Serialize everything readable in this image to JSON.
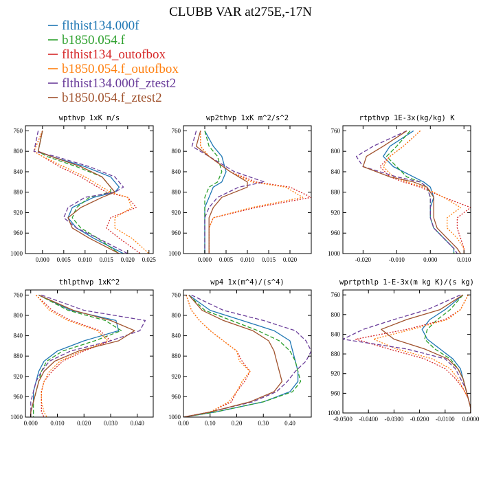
{
  "title": "CLUBB VAR at275E,-17N",
  "legend": [
    {
      "name": "flthist134.000f",
      "color": "#1f77b4",
      "style": "solid"
    },
    {
      "name": "b1850.054.f",
      "color": "#2ca02c",
      "style": "dashed"
    },
    {
      "name": "flthist134_outofbox",
      "color": "#d62728",
      "style": "dotted"
    },
    {
      "name": "b1850.054.f_outofbox",
      "color": "#ff7f0e",
      "style": "dotted"
    },
    {
      "name": "flthist134.000f_ztest2",
      "color": "#6a3d9a",
      "style": "dashed"
    },
    {
      "name": "b1850.054.f_ztest2",
      "color": "#a0522d",
      "style": "solid"
    }
  ],
  "chart_data": [
    {
      "type": "line",
      "title": "wpthvp  1xK m/s",
      "xlim": [
        -0.004,
        0.026
      ],
      "ylim": [
        1000,
        750
      ],
      "xticks": [
        0,
        0.005,
        0.01,
        0.015,
        0.02,
        0.025
      ],
      "xticklabels": [
        "0.000",
        "0.005",
        "0.010",
        "0.015",
        "0.020",
        "0.025"
      ],
      "yticks": [
        760,
        800,
        840,
        880,
        920,
        960,
        1000
      ],
      "y": [
        760,
        800,
        810,
        830,
        850,
        870,
        880,
        890,
        910,
        930,
        950,
        970,
        1000
      ],
      "series": [
        {
          "name": "flthist134.000f",
          "values": [
            0.0,
            -0.001,
            0.002,
            0.01,
            0.016,
            0.018,
            0.017,
            0.012,
            0.007,
            0.006,
            0.008,
            0.012,
            0.019
          ]
        },
        {
          "name": "b1850.054.f",
          "values": [
            0.0,
            -0.001,
            0.001,
            0.008,
            0.014,
            0.016,
            0.016,
            0.011,
            0.008,
            0.007,
            0.009,
            0.013,
            0.018
          ]
        },
        {
          "name": "flthist134_outofbox",
          "values": [
            0.0,
            -0.002,
            0.0,
            0.004,
            0.009,
            0.013,
            0.015,
            0.02,
            0.022,
            0.016,
            0.015,
            0.018,
            0.023
          ]
        },
        {
          "name": "b1850.054.f_outofbox",
          "values": [
            0.0,
            -0.002,
            0.0,
            0.005,
            0.01,
            0.014,
            0.016,
            0.02,
            0.021,
            0.017,
            0.017,
            0.021,
            0.025
          ]
        },
        {
          "name": "flthist134.000f_ztest2",
          "values": [
            -0.001,
            -0.002,
            0.003,
            0.011,
            0.017,
            0.019,
            0.017,
            0.01,
            0.006,
            0.005,
            0.008,
            0.013,
            0.02
          ]
        },
        {
          "name": "b1850.054.f_ztest2",
          "values": [
            0.0,
            -0.001,
            0.002,
            0.009,
            0.014,
            0.016,
            0.017,
            0.014,
            0.009,
            0.006,
            0.007,
            0.011,
            0.018
          ]
        }
      ]
    },
    {
      "type": "line",
      "title": "wp2thvp  1xK m^2/s^2",
      "xlim": [
        -0.005,
        0.025
      ],
      "ylim": [
        1000,
        750
      ],
      "xticks": [
        0,
        0.005,
        0.01,
        0.015,
        0.02
      ],
      "xticklabels": [
        "0.000",
        "0.005",
        "0.010",
        "0.015",
        "0.020"
      ],
      "yticks": [
        760,
        800,
        840,
        880,
        920,
        960,
        1000
      ],
      "y": [
        760,
        790,
        810,
        840,
        860,
        870,
        890,
        910,
        930,
        950,
        970,
        1000
      ],
      "series": [
        {
          "name": "flthist134.000f",
          "values": [
            0.0,
            0.002,
            0.004,
            0.005,
            0.004,
            0.002,
            0.001,
            0.0,
            0.0,
            0.0,
            0.0,
            0.0
          ]
        },
        {
          "name": "b1850.054.f",
          "values": [
            0.0,
            0.001,
            0.003,
            0.004,
            0.003,
            0.001,
            0.0,
            0.0,
            0.0,
            0.0,
            0.0,
            0.0
          ]
        },
        {
          "name": "flthist134_outofbox",
          "values": [
            -0.001,
            -0.001,
            0.001,
            0.006,
            0.012,
            0.02,
            0.025,
            0.012,
            0.002,
            0.001,
            0.001,
            0.001
          ]
        },
        {
          "name": "b1850.054.f_outofbox",
          "values": [
            -0.001,
            -0.001,
            0.001,
            0.006,
            0.011,
            0.019,
            0.023,
            0.011,
            0.002,
            0.001,
            0.001,
            0.001
          ]
        },
        {
          "name": "flthist134.000f_ztest2",
          "values": [
            -0.002,
            -0.003,
            0.001,
            0.007,
            0.014,
            0.008,
            0.003,
            0.001,
            0.0,
            0.0,
            0.0,
            0.0
          ]
        },
        {
          "name": "b1850.054.f_ztest2",
          "values": [
            -0.001,
            -0.002,
            0.001,
            0.006,
            0.01,
            0.01,
            0.004,
            0.002,
            0.001,
            0.001,
            0.001,
            0.001
          ]
        }
      ]
    },
    {
      "type": "line",
      "title": "rtpthvp  1E-3x(kg/kg) K",
      "xlim": [
        -0.026,
        0.012
      ],
      "ylim": [
        1000,
        750
      ],
      "xticks": [
        -0.02,
        -0.01,
        0,
        0.01
      ],
      "xticklabels": [
        "-0.020",
        "-0.010",
        "0.000",
        "0.010"
      ],
      "yticks": [
        760,
        800,
        840,
        880,
        920,
        960,
        1000
      ],
      "y": [
        760,
        790,
        810,
        830,
        850,
        860,
        870,
        890,
        910,
        930,
        950,
        970,
        990,
        1000
      ],
      "series": [
        {
          "name": "flthist134.000f",
          "values": [
            -0.005,
            -0.012,
            -0.014,
            -0.011,
            -0.005,
            -0.002,
            0.0,
            0.001,
            0.0,
            0.0,
            0.001,
            0.004,
            0.007,
            0.007
          ]
        },
        {
          "name": "b1850.054.f",
          "values": [
            -0.006,
            -0.01,
            -0.013,
            -0.01,
            -0.007,
            -0.003,
            -0.001,
            0.0,
            0.0,
            0.0,
            0.001,
            0.004,
            0.007,
            0.007
          ]
        },
        {
          "name": "flthist134_outofbox",
          "values": [
            -0.003,
            -0.008,
            -0.012,
            -0.015,
            -0.012,
            -0.008,
            -0.003,
            0.004,
            0.012,
            0.008,
            0.008,
            0.009,
            0.01,
            0.01
          ]
        },
        {
          "name": "b1850.054.f_outofbox",
          "values": [
            -0.003,
            -0.008,
            -0.012,
            -0.014,
            -0.011,
            -0.007,
            -0.002,
            0.004,
            0.009,
            0.005,
            0.005,
            0.008,
            0.01,
            0.01
          ]
        },
        {
          "name": "flthist134.000f_ztest2",
          "values": [
            -0.007,
            -0.017,
            -0.022,
            -0.02,
            -0.01,
            -0.003,
            -0.001,
            0.0,
            0.0,
            0.0,
            0.001,
            0.004,
            0.007,
            0.008
          ]
        },
        {
          "name": "b1850.054.f_ztest2",
          "values": [
            -0.007,
            -0.014,
            -0.019,
            -0.02,
            -0.012,
            -0.005,
            -0.001,
            0.001,
            0.001,
            0.001,
            0.002,
            0.005,
            0.008,
            0.009
          ]
        }
      ]
    },
    {
      "type": "line",
      "title": "thlpthvp  1xK^2",
      "xlim": [
        -0.002,
        0.046
      ],
      "ylim": [
        1000,
        750
      ],
      "xticks": [
        0,
        0.01,
        0.02,
        0.03,
        0.04
      ],
      "xticklabels": [
        "0.000",
        "0.010",
        "0.020",
        "0.030",
        "0.040"
      ],
      "yticks": [
        760,
        800,
        840,
        880,
        920,
        960,
        1000
      ],
      "y": [
        760,
        790,
        810,
        830,
        850,
        870,
        890,
        910,
        930,
        950,
        970,
        990,
        1000
      ],
      "series": [
        {
          "name": "flthist134.000f",
          "values": [
            0.003,
            0.015,
            0.032,
            0.033,
            0.02,
            0.01,
            0.005,
            0.003,
            0.002,
            0.001,
            0.001,
            0.0,
            0.0
          ]
        },
        {
          "name": "b1850.054.f",
          "values": [
            0.003,
            0.014,
            0.028,
            0.034,
            0.024,
            0.012,
            0.006,
            0.004,
            0.003,
            0.002,
            0.001,
            0.001,
            0.001
          ]
        },
        {
          "name": "flthist134_outofbox",
          "values": [
            0.002,
            0.008,
            0.015,
            0.026,
            0.03,
            0.02,
            0.012,
            0.008,
            0.005,
            0.004,
            0.004,
            0.004,
            0.005
          ]
        },
        {
          "name": "b1850.054.f_outofbox",
          "values": [
            0.002,
            0.007,
            0.014,
            0.025,
            0.029,
            0.019,
            0.011,
            0.007,
            0.005,
            0.004,
            0.004,
            0.005,
            0.006
          ]
        },
        {
          "name": "flthist134.000f_ztest2",
          "values": [
            0.004,
            0.02,
            0.043,
            0.041,
            0.03,
            0.015,
            0.007,
            0.004,
            0.002,
            0.001,
            0.0,
            0.0,
            0.0
          ]
        },
        {
          "name": "b1850.054.f_ztest2",
          "values": [
            0.003,
            0.016,
            0.03,
            0.039,
            0.033,
            0.018,
            0.009,
            0.005,
            0.003,
            0.002,
            0.001,
            0.0,
            0.0
          ]
        }
      ]
    },
    {
      "type": "line",
      "title": "wp4  1x(m^4)/(s^4)",
      "xlim": [
        0,
        0.48
      ],
      "ylim": [
        1000,
        750
      ],
      "xticks": [
        0,
        0.1,
        0.2,
        0.3,
        0.4
      ],
      "xticklabels": [
        "0.00",
        "0.10",
        "0.20",
        "0.30",
        "0.40"
      ],
      "yticks": [
        760,
        800,
        840,
        880,
        920,
        960,
        1000
      ],
      "y": [
        760,
        790,
        810,
        830,
        850,
        870,
        890,
        910,
        930,
        950,
        970,
        990,
        1000
      ],
      "series": [
        {
          "name": "flthist134.000f",
          "values": [
            0.02,
            0.1,
            0.22,
            0.34,
            0.4,
            0.41,
            0.42,
            0.43,
            0.43,
            0.4,
            0.3,
            0.12,
            0.0
          ]
        },
        {
          "name": "b1850.054.f",
          "values": [
            0.02,
            0.08,
            0.18,
            0.28,
            0.36,
            0.4,
            0.42,
            0.43,
            0.44,
            0.41,
            0.3,
            0.12,
            0.0
          ]
        },
        {
          "name": "flthist134_outofbox",
          "values": [
            0.01,
            0.03,
            0.06,
            0.1,
            0.15,
            0.2,
            0.22,
            0.25,
            0.23,
            0.2,
            0.18,
            0.1,
            0.0
          ]
        },
        {
          "name": "b1850.054.f_outofbox",
          "values": [
            0.01,
            0.03,
            0.06,
            0.1,
            0.15,
            0.2,
            0.21,
            0.25,
            0.22,
            0.2,
            0.17,
            0.1,
            0.0
          ]
        },
        {
          "name": "flthist134.000f_ztest2",
          "values": [
            0.03,
            0.15,
            0.3,
            0.42,
            0.46,
            0.48,
            0.46,
            0.42,
            0.39,
            0.35,
            0.26,
            0.1,
            0.0
          ]
        },
        {
          "name": "b1850.054.f_ztest2",
          "values": [
            0.02,
            0.07,
            0.15,
            0.26,
            0.32,
            0.34,
            0.35,
            0.36,
            0.37,
            0.34,
            0.25,
            0.1,
            0.0
          ]
        }
      ]
    },
    {
      "type": "line",
      "title": "wprtpthlp  1-E-3x(m kg K)/(s kg)",
      "xlim": [
        -0.05,
        0.0
      ],
      "ylim": [
        1000,
        750
      ],
      "xticks": [
        -0.05,
        -0.04,
        -0.03,
        -0.02,
        -0.01,
        0
      ],
      "xticklabels": [
        "-0.0500",
        "-0.0400",
        "-0.0300",
        "-0.0200",
        "-0.0100",
        "0.0000"
      ],
      "yticks": [
        760,
        800,
        840,
        880,
        920,
        960,
        1000
      ],
      "y": [
        760,
        790,
        810,
        830,
        850,
        870,
        890,
        910,
        930,
        950,
        970,
        990,
        1000
      ],
      "series": [
        {
          "name": "flthist134.000f",
          "values": [
            -0.003,
            -0.01,
            -0.016,
            -0.019,
            -0.017,
            -0.012,
            -0.007,
            -0.004,
            -0.003,
            -0.002,
            -0.001,
            0.0,
            0.0
          ]
        },
        {
          "name": "b1850.054.f",
          "values": [
            -0.003,
            -0.008,
            -0.013,
            -0.017,
            -0.018,
            -0.014,
            -0.008,
            -0.005,
            -0.003,
            -0.002,
            -0.001,
            0.0,
            0.0
          ]
        },
        {
          "name": "flthist134_outofbox",
          "values": [
            -0.001,
            -0.004,
            -0.01,
            -0.025,
            -0.045,
            -0.032,
            -0.018,
            -0.01,
            -0.006,
            -0.003,
            -0.001,
            0.0,
            0.0
          ]
        },
        {
          "name": "b1850.054.f_outofbox",
          "values": [
            -0.001,
            -0.004,
            -0.009,
            -0.023,
            -0.038,
            -0.029,
            -0.015,
            -0.008,
            -0.005,
            -0.003,
            -0.001,
            0.0,
            0.0
          ]
        },
        {
          "name": "flthist134.000f_ztest2",
          "values": [
            -0.004,
            -0.017,
            -0.03,
            -0.042,
            -0.05,
            -0.025,
            -0.01,
            -0.006,
            -0.004,
            -0.002,
            -0.001,
            0.0,
            0.0
          ]
        },
        {
          "name": "b1850.054.f_ztest2",
          "values": [
            -0.003,
            -0.012,
            -0.025,
            -0.035,
            -0.03,
            -0.018,
            -0.009,
            -0.005,
            -0.003,
            -0.002,
            -0.001,
            0.0,
            0.0
          ]
        }
      ]
    }
  ]
}
